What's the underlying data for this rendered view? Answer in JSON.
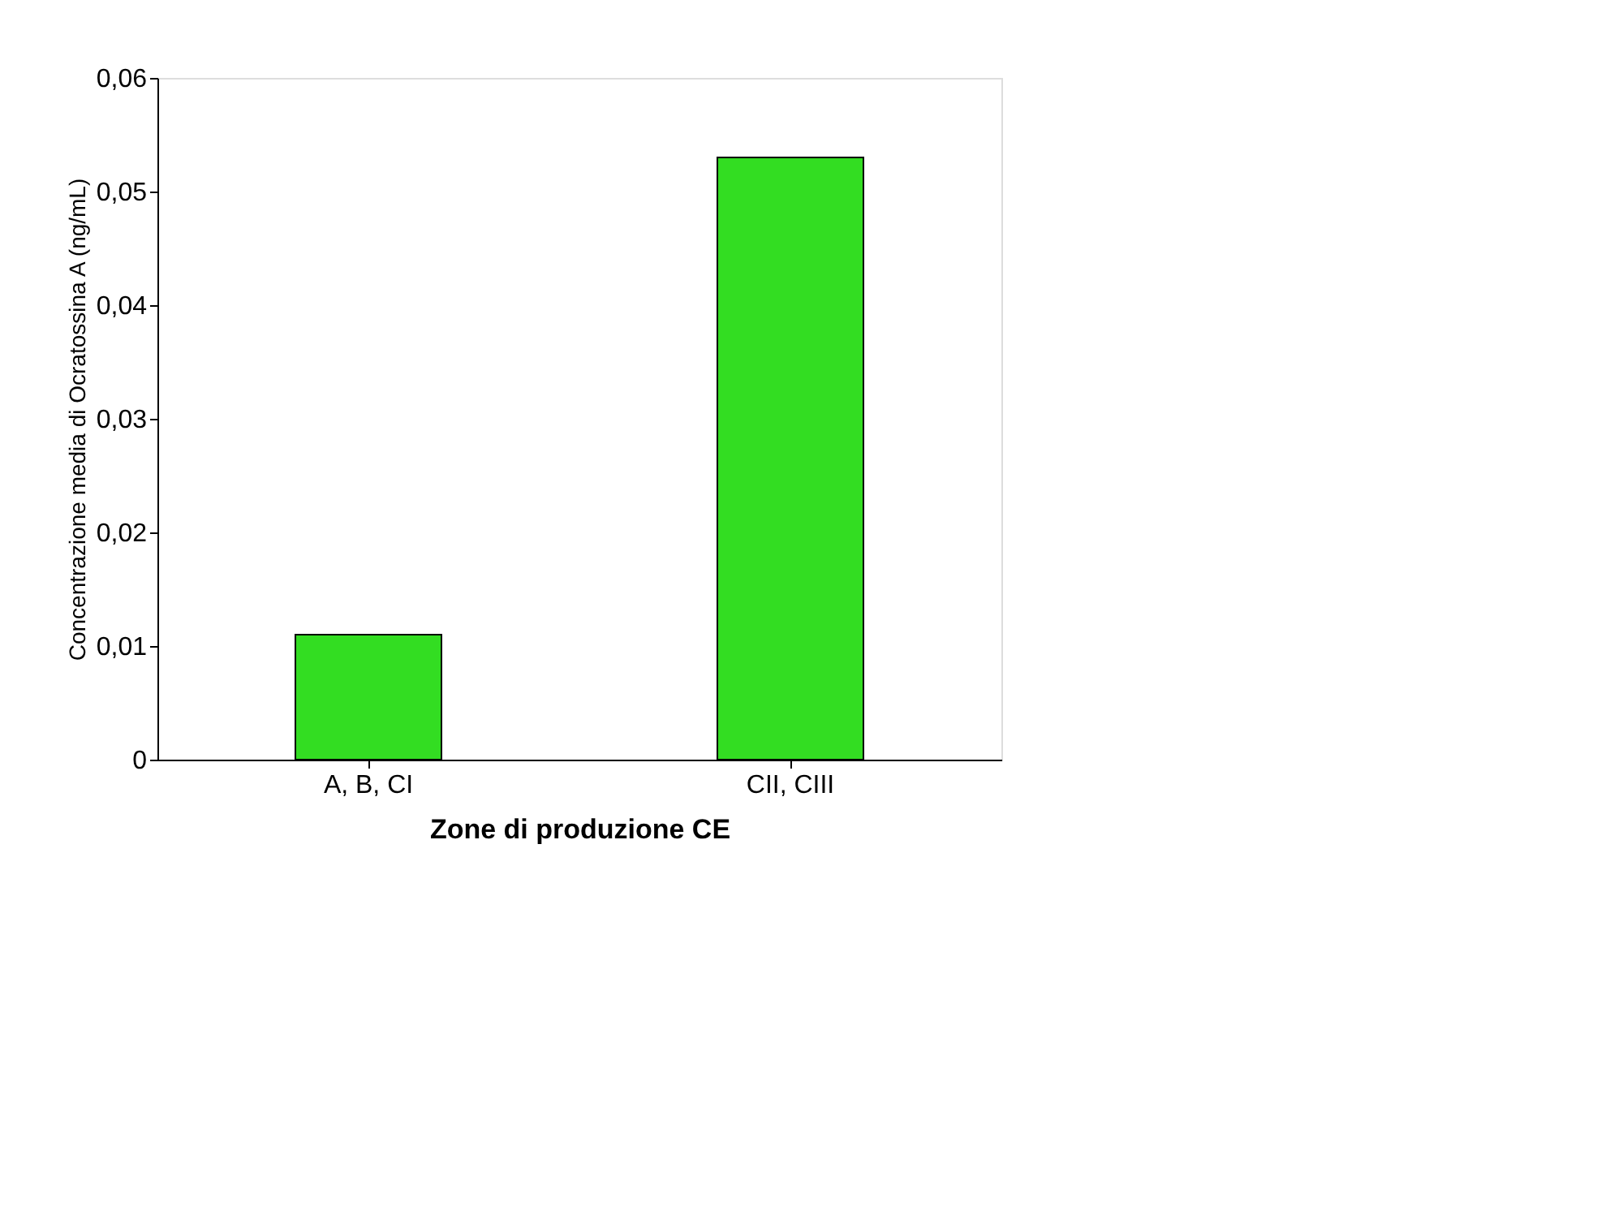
{
  "chart_data": {
    "type": "bar",
    "xlabel": "Zone di produzione CE",
    "ylabel": "Concentrazione media di Ocratossina A (ng/mL)",
    "categories": [
      "A, B, CI",
      "CII, CIII"
    ],
    "values": [
      0.011,
      0.053
    ],
    "color": "#33dd22",
    "ylim": [
      0,
      0.06
    ],
    "yticks": [
      0,
      {
        "value": 0.01,
        "label": "0,01"
      },
      {
        "value": 0.02,
        "label": "0,02"
      },
      {
        "value": 0.03,
        "label": "0,03"
      },
      {
        "value": 0.04,
        "label": "0,04"
      },
      {
        "value": 0.05,
        "label": "0,05"
      },
      {
        "value": 0.06,
        "label": "0,06"
      }
    ],
    "grid": false
  }
}
